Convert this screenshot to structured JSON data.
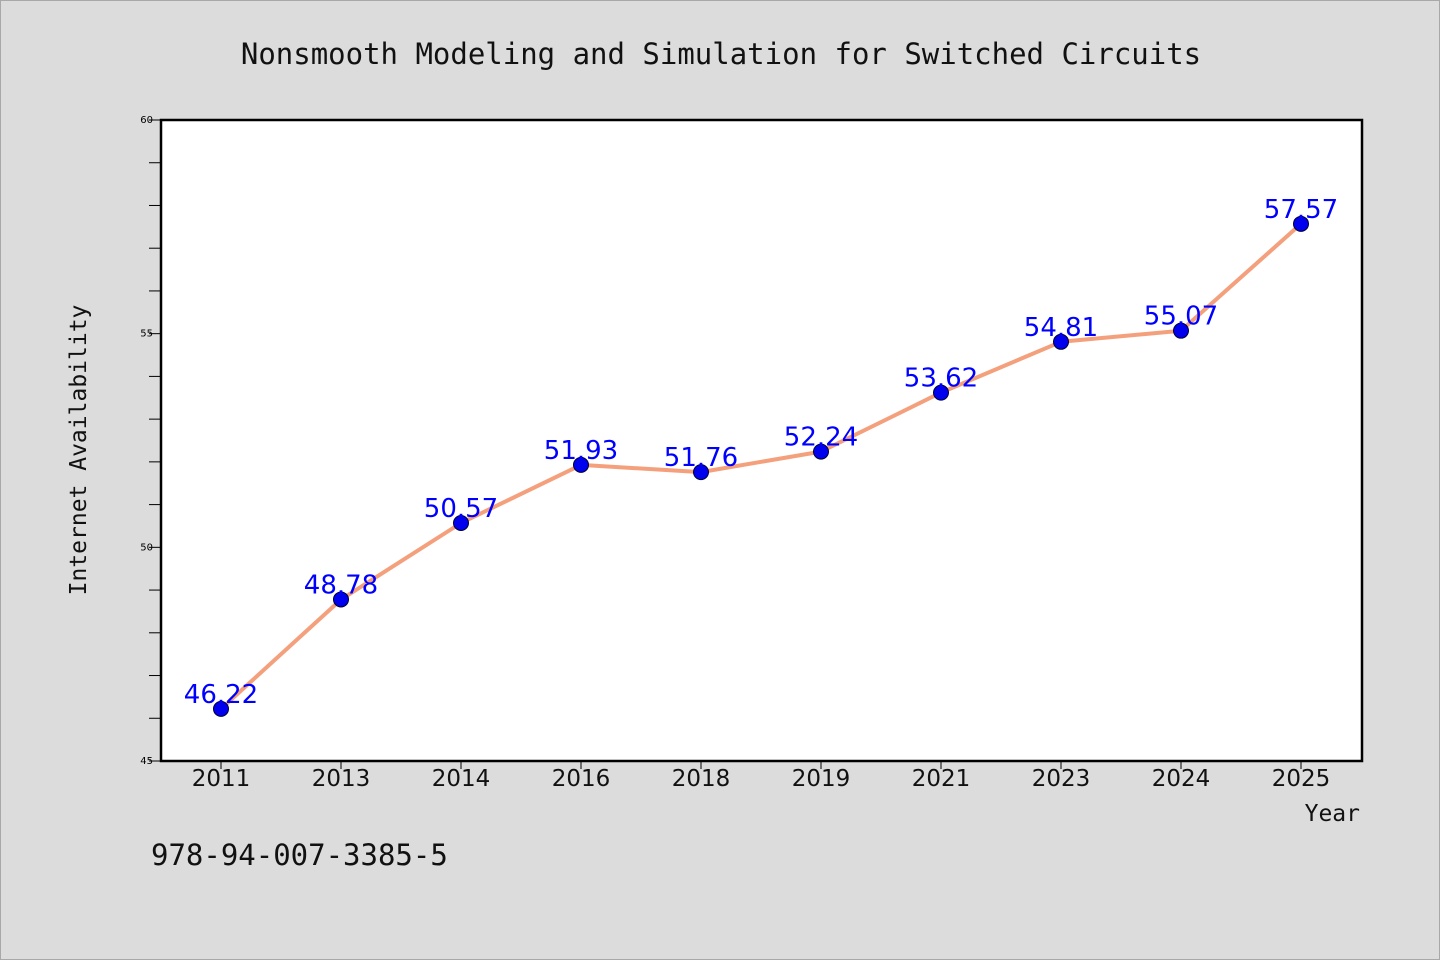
{
  "chart_data": {
    "type": "line",
    "title": "Nonsmooth Modeling and Simulation for Switched Circuits",
    "xlabel": "Year",
    "ylabel": "Internet Availability",
    "categories": [
      "2011",
      "2013",
      "2014",
      "2016",
      "2018",
      "2019",
      "2021",
      "2023",
      "2024",
      "2025"
    ],
    "series": [
      {
        "values": [
          46.22,
          48.78,
          50.57,
          51.93,
          51.76,
          52.24,
          53.62,
          54.81,
          55.07,
          57.57
        ],
        "labels": [
          "46.22",
          "48.78",
          "50.57",
          "51.93",
          "51.76",
          "52.24",
          "53.62",
          "54.81",
          "55.07",
          "57.57"
        ]
      }
    ],
    "ylim": [
      45,
      60
    ],
    "yticks": [
      "45",
      "50",
      "55",
      "60"
    ],
    "grid": false,
    "legend": "none",
    "line_color": "#f4a07c",
    "marker_color": "#0000ee",
    "label_color": "#0000ff"
  },
  "footer_text": "978-94-007-3385-5"
}
